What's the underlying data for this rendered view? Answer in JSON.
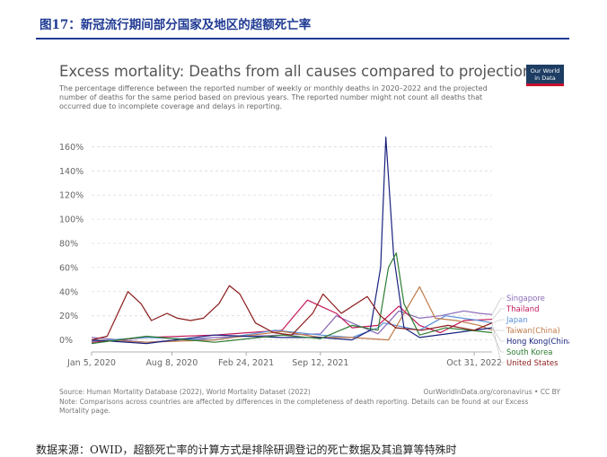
{
  "figure": {
    "caption": "图17：新冠流行期间部分国家及地区的超额死亡率",
    "bottom_text": "数据来源：OWID，超额死亡率的计算方式是排除研调登记的死亡数据及其追算等特殊时"
  },
  "logo": {
    "line1": "Our World",
    "line2": "in Data"
  },
  "chart_data": {
    "type": "line",
    "title": "Excess mortality: Deaths from all causes compared to projection",
    "subtitle": "The percentage difference between the reported number of weekly or monthly deaths in 2020–2022 and the projected number of deaths for the same period based on previous years. The reported number might not count all deaths that occurred due to incomplete coverage and delays in reporting.",
    "x_tick_labels": [
      "Jan 5, 2020",
      "Aug 8, 2020",
      "Feb 24, 2021",
      "Sep 12, 2021",
      "Oct 31, 2022"
    ],
    "x_tick_dates": [
      "2020-01-05",
      "2020-08-08",
      "2021-02-24",
      "2021-09-12",
      "2022-10-31"
    ],
    "x_range": [
      "2020-01-05",
      "2022-12-18"
    ],
    "y_ticks": [
      0,
      20,
      40,
      60,
      80,
      100,
      120,
      140,
      160
    ],
    "y_tick_labels": [
      "0%",
      "20%",
      "40%",
      "60%",
      "80%",
      "100%",
      "120%",
      "140%",
      "160%"
    ],
    "ylim": [
      -10,
      170
    ],
    "grid": "horizontal dashed",
    "legend_position": "right end of lines",
    "series": [
      {
        "name": "Singapore",
        "color": "#8a6ab8",
        "points": [
          [
            "2020-01-05",
            2
          ],
          [
            "2020-06-01",
            -2
          ],
          [
            "2020-12-01",
            2
          ],
          [
            "2021-06-01",
            4
          ],
          [
            "2021-09-12",
            5
          ],
          [
            "2021-10-25",
            20
          ],
          [
            "2021-12-06",
            14
          ],
          [
            "2022-02-14",
            5
          ],
          [
            "2022-04-11",
            24
          ],
          [
            "2022-06-06",
            18
          ],
          [
            "2022-08-01",
            20
          ],
          [
            "2022-10-03",
            24
          ],
          [
            "2022-11-14",
            22
          ],
          [
            "2022-12-18",
            21
          ]
        ]
      },
      {
        "name": "Thailand",
        "color": "#c2185b",
        "points": [
          [
            "2020-01-05",
            -2
          ],
          [
            "2020-06-01",
            2
          ],
          [
            "2020-12-01",
            4
          ],
          [
            "2021-06-01",
            8
          ],
          [
            "2021-08-08",
            33
          ],
          [
            "2021-09-12",
            28
          ],
          [
            "2021-10-25",
            22
          ],
          [
            "2021-12-06",
            10
          ],
          [
            "2022-02-14",
            12
          ],
          [
            "2022-04-11",
            28
          ],
          [
            "2022-06-06",
            12
          ],
          [
            "2022-08-01",
            6
          ],
          [
            "2022-10-03",
            16
          ],
          [
            "2022-12-18",
            17
          ]
        ]
      },
      {
        "name": "Japan",
        "color": "#5a8fd8",
        "points": [
          [
            "2020-01-05",
            -1
          ],
          [
            "2020-06-01",
            2
          ],
          [
            "2020-12-01",
            0
          ],
          [
            "2021-05-14",
            8
          ],
          [
            "2021-09-12",
            4
          ],
          [
            "2021-12-06",
            2
          ],
          [
            "2022-02-14",
            10
          ],
          [
            "2022-03-01",
            14
          ],
          [
            "2022-06-06",
            8
          ],
          [
            "2022-08-15",
            20
          ],
          [
            "2022-11-14",
            16
          ],
          [
            "2022-12-18",
            14
          ]
        ]
      },
      {
        "name": "Taiwan(China)",
        "color": "#c07a4a",
        "points": [
          [
            "2020-01-05",
            0
          ],
          [
            "2020-06-01",
            -2
          ],
          [
            "2020-12-01",
            0
          ],
          [
            "2021-06-01",
            7
          ],
          [
            "2021-09-12",
            2
          ],
          [
            "2021-12-06",
            2
          ],
          [
            "2022-03-14",
            0
          ],
          [
            "2022-06-06",
            44
          ],
          [
            "2022-07-18",
            18
          ],
          [
            "2022-09-12",
            16
          ],
          [
            "2022-11-14",
            12
          ],
          [
            "2022-12-18",
            8
          ]
        ]
      },
      {
        "name": "Hong Kong(China)",
        "color": "#1a237e",
        "points": [
          [
            "2020-01-05",
            0
          ],
          [
            "2020-06-01",
            -3
          ],
          [
            "2020-12-01",
            4
          ],
          [
            "2021-06-01",
            2
          ],
          [
            "2021-09-12",
            2
          ],
          [
            "2021-12-06",
            0
          ],
          [
            "2022-01-24",
            8
          ],
          [
            "2022-02-21",
            60
          ],
          [
            "2022-03-07",
            168
          ],
          [
            "2022-03-28",
            70
          ],
          [
            "2022-04-25",
            10
          ],
          [
            "2022-06-06",
            2
          ],
          [
            "2022-09-12",
            6
          ],
          [
            "2022-12-18",
            10
          ]
        ]
      },
      {
        "name": "South Korea",
        "color": "#2e7d32",
        "points": [
          [
            "2020-01-05",
            -3
          ],
          [
            "2020-06-01",
            3
          ],
          [
            "2020-12-01",
            -2
          ],
          [
            "2021-06-01",
            4
          ],
          [
            "2021-09-12",
            1
          ],
          [
            "2021-12-06",
            12
          ],
          [
            "2022-02-14",
            8
          ],
          [
            "2022-03-14",
            60
          ],
          [
            "2022-04-04",
            72
          ],
          [
            "2022-04-25",
            30
          ],
          [
            "2022-06-06",
            4
          ],
          [
            "2022-08-15",
            10
          ],
          [
            "2022-12-18",
            6
          ]
        ]
      },
      {
        "name": "United States",
        "color": "#8b1a1a",
        "points": [
          [
            "2020-01-05",
            0
          ],
          [
            "2020-02-16",
            3
          ],
          [
            "2020-04-12",
            40
          ],
          [
            "2020-05-17",
            30
          ],
          [
            "2020-06-14",
            16
          ],
          [
            "2020-07-26",
            22
          ],
          [
            "2020-08-23",
            18
          ],
          [
            "2020-09-27",
            16
          ],
          [
            "2020-11-01",
            18
          ],
          [
            "2020-12-13",
            30
          ],
          [
            "2021-01-10",
            45
          ],
          [
            "2021-02-07",
            38
          ],
          [
            "2021-03-21",
            14
          ],
          [
            "2021-05-09",
            6
          ],
          [
            "2021-06-27",
            4
          ],
          [
            "2021-08-22",
            22
          ],
          [
            "2021-09-19",
            38
          ],
          [
            "2021-11-07",
            22
          ],
          [
            "2022-01-16",
            36
          ],
          [
            "2022-02-20",
            20
          ],
          [
            "2022-04-03",
            10
          ],
          [
            "2022-06-12",
            8
          ],
          [
            "2022-08-21",
            12
          ],
          [
            "2022-10-31",
            8
          ],
          [
            "2022-12-18",
            14
          ]
        ]
      }
    ]
  },
  "footer": {
    "source": "Source: Human Mortality Database (2022), World Mortality Dataset (2022)",
    "site": "OurWorldInData.org/coronavirus • CC BY",
    "note": "Note: Comparisons across countries are affected by differences in the completeness of death reporting. Details can be found at our Excess Mortality page."
  }
}
